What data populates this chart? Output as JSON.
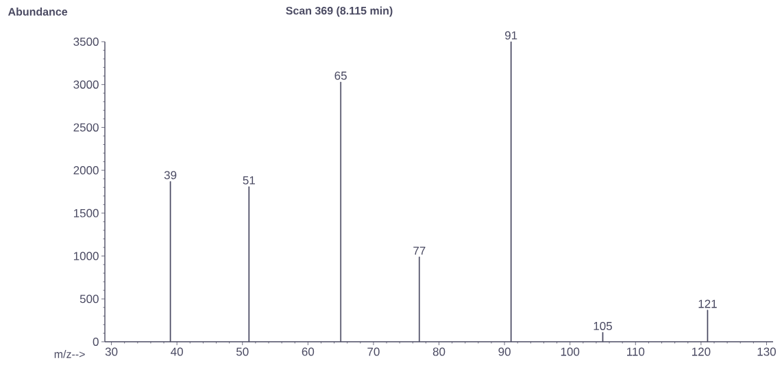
{
  "chart_data": {
    "type": "bar",
    "title": "Scan 369 (8.115 min)",
    "xlabel": "m/z-->",
    "ylabel": "Abundance",
    "x": [
      39,
      51,
      65,
      77,
      91,
      105,
      121
    ],
    "values": [
      1870,
      1810,
      3030,
      990,
      3500,
      110,
      370
    ],
    "color": "#4a4a62",
    "xlim": [
      29,
      131
    ],
    "ylim": [
      0,
      3500
    ],
    "xticks": [
      30,
      40,
      50,
      60,
      70,
      80,
      90,
      100,
      110,
      120,
      130
    ],
    "yticks": [
      0,
      500,
      1000,
      1500,
      2000,
      2500,
      3000,
      3500
    ],
    "annotations": [
      {
        "text": "39",
        "x": 39,
        "y": 1870
      },
      {
        "text": "51",
        "x": 51,
        "y": 1810
      },
      {
        "text": "65",
        "x": 65,
        "y": 3030
      },
      {
        "text": "77",
        "x": 77,
        "y": 990
      },
      {
        "text": "91",
        "x": 91,
        "y": 3500
      },
      {
        "text": "105",
        "x": 105,
        "y": 110
      },
      {
        "text": "121",
        "x": 121,
        "y": 370
      }
    ]
  }
}
